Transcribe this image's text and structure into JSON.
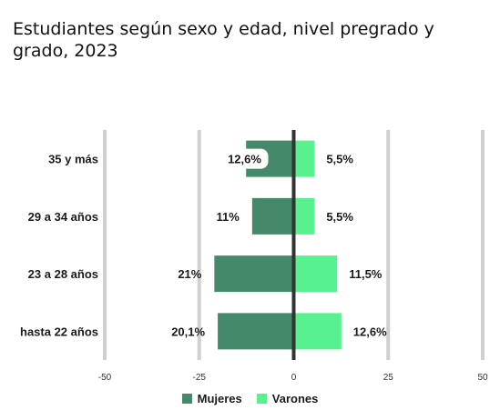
{
  "chart_data": {
    "type": "bar",
    "orientation": "horizontal",
    "title": "Estudiantes según sexo y edad, nivel pregrado y grado, 2023",
    "categories": [
      "35 y más",
      "29 a 34 años",
      "23 a 28 años",
      "hasta 22 años"
    ],
    "series": [
      {
        "name": "Mujeres",
        "color": "#448a6a",
        "values": [
          -12.6,
          -11,
          -21,
          -20.1
        ],
        "labels": [
          "12,6%",
          "11%",
          "21%",
          "20,1%"
        ]
      },
      {
        "name": "Varones",
        "color": "#57f28f",
        "values": [
          5.5,
          5.5,
          11.5,
          12.6
        ],
        "labels": [
          "5,5%",
          "5,5%",
          "11,5%",
          "12,6%"
        ]
      }
    ],
    "xlim": [
      -50,
      50
    ],
    "xticks": [
      -50,
      -25,
      0,
      25,
      50
    ],
    "xtick_labels": [
      "-50",
      "-25",
      "0",
      "25",
      "50"
    ],
    "xlabel": "",
    "ylabel": "",
    "grid": true,
    "legend_position": "bottom-center"
  }
}
